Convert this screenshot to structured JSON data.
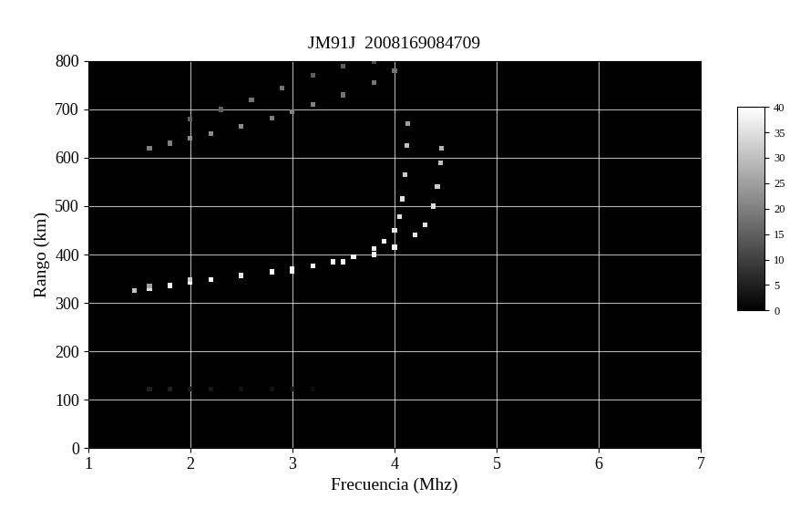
{
  "chart_data": {
    "type": "scatter",
    "title": "JM91J  2008169084709",
    "x_label": "Frecuencia (Mhz)",
    "y_label": "Rango (km)",
    "xlim": [
      1,
      7
    ],
    "xticks": [
      1,
      2,
      3,
      4,
      5,
      6,
      7
    ],
    "ylim": [
      0,
      800
    ],
    "yticks": [
      0,
      100,
      200,
      300,
      400,
      500,
      600,
      700,
      800
    ],
    "grid": true,
    "colorbar": {
      "range": [
        0,
        40
      ],
      "ticks": [
        0,
        5,
        10,
        15,
        20,
        25,
        30,
        35,
        40
      ]
    },
    "series": [
      {
        "x": [
          1.45,
          1.6,
          1.8,
          2.0,
          2.2,
          2.5,
          2.8,
          3.0,
          3.2,
          3.4,
          3.6,
          3.8,
          3.9,
          4.0,
          4.05,
          4.08,
          4.1,
          4.12,
          4.13
        ],
        "values": [
          325,
          330,
          336,
          342,
          348,
          356,
          364,
          370,
          377,
          385,
          395,
          412,
          428,
          450,
          478,
          515,
          565,
          625,
          670
        ],
        "intensity": [
          30,
          35,
          38,
          40,
          40,
          40,
          40,
          40,
          40,
          38,
          38,
          38,
          38,
          36,
          35,
          35,
          32,
          30,
          25
        ]
      },
      {
        "x": [
          1.6,
          2.0,
          2.5,
          3.0,
          3.5,
          3.8,
          4.0,
          4.2,
          4.3,
          4.38,
          4.42,
          4.45,
          4.46
        ],
        "values": [
          335,
          348,
          357,
          366,
          385,
          400,
          415,
          440,
          462,
          500,
          540,
          590,
          620
        ],
        "intensity": [
          25,
          32,
          35,
          38,
          38,
          38,
          38,
          36,
          35,
          35,
          32,
          30,
          28
        ]
      },
      {
        "x": [
          1.6,
          1.8,
          2.0,
          2.2,
          2.5,
          2.8,
          3.0,
          3.2,
          3.5,
          3.8,
          4.0
        ],
        "values": [
          620,
          630,
          640,
          650,
          665,
          682,
          695,
          710,
          730,
          755,
          780
        ],
        "intensity": [
          20,
          20,
          22,
          22,
          22,
          20,
          20,
          20,
          18,
          18,
          18
        ]
      },
      {
        "x": [
          2.0,
          2.3,
          2.6,
          2.9,
          3.2,
          3.5,
          3.8
        ],
        "values": [
          680,
          700,
          720,
          745,
          770,
          790,
          800
        ],
        "intensity": [
          15,
          15,
          18,
          18,
          15,
          15,
          12
        ]
      },
      {
        "x": [
          1.6,
          1.8,
          2.0,
          2.2,
          2.5,
          2.8,
          3.0,
          3.2
        ],
        "values": [
          122,
          122,
          122,
          121,
          121,
          121,
          121,
          121
        ],
        "intensity": [
          5,
          5,
          4,
          4,
          3,
          3,
          3,
          2
        ]
      }
    ]
  }
}
